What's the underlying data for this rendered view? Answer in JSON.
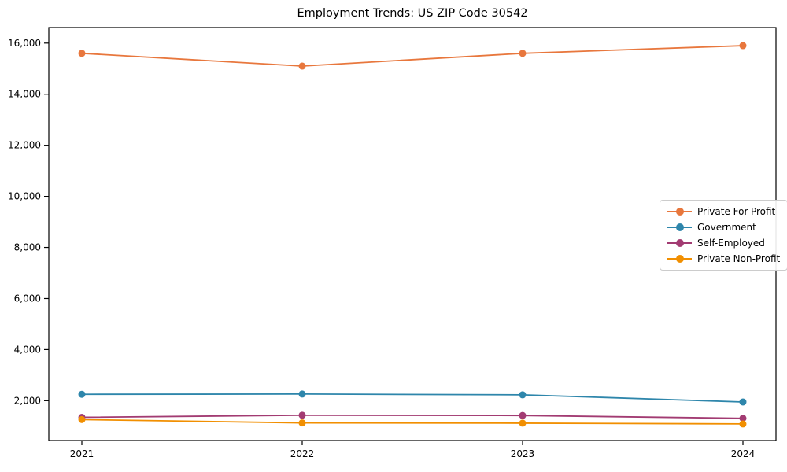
{
  "chart_data": {
    "type": "line",
    "title": "Employment Trends: US ZIP Code 30542",
    "xlabel": "",
    "ylabel": "",
    "x": [
      2021,
      2022,
      2023,
      2024
    ],
    "xtick_labels": [
      "2021",
      "2022",
      "2023",
      "2024"
    ],
    "yticks": [
      2000,
      4000,
      6000,
      8000,
      10000,
      12000,
      14000,
      16000
    ],
    "ytick_labels": [
      "2,000",
      "4,000",
      "6,000",
      "8,000",
      "10,000",
      "12,000",
      "14,000",
      "16,000"
    ],
    "series": [
      {
        "name": "Private For-Profit",
        "color": "#E8773D",
        "values": [
          15600,
          15100,
          15600,
          15900
        ]
      },
      {
        "name": "Government",
        "color": "#2E86AB",
        "values": [
          2250,
          2260,
          2230,
          1950
        ]
      },
      {
        "name": "Self-Employed",
        "color": "#A23B72",
        "values": [
          1350,
          1430,
          1420,
          1310
        ]
      },
      {
        "name": "Private Non-Profit",
        "color": "#F18F01",
        "values": [
          1260,
          1130,
          1120,
          1090
        ]
      }
    ],
    "xlim": [
      2020.85,
      2024.15
    ],
    "ylim": [
      440,
      16610
    ],
    "grid": false,
    "legend_position": "center-right",
    "axis_color": "#000000",
    "legend_border_color": "#cccccc"
  }
}
